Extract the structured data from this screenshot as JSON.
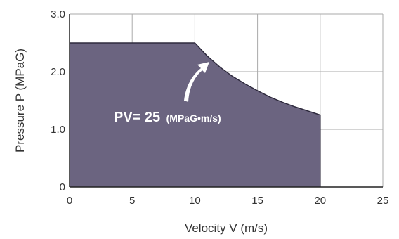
{
  "chart_data": {
    "type": "area",
    "xlabel": "Velocity V (m/s)",
    "ylabel": "Pressure P   (MPaG)",
    "xlim": [
      0,
      25
    ],
    "ylim": [
      0,
      3.0
    ],
    "x_ticks": [
      "0",
      "5",
      "10",
      "15",
      "20",
      "25"
    ],
    "y_ticks": [
      "0",
      "1.0",
      "2.0",
      "3.0"
    ],
    "grid": true,
    "series": [
      {
        "x": [
          0,
          10,
          11,
          12,
          13,
          14,
          15,
          16,
          17,
          18,
          19,
          20
        ],
        "y": [
          2.5,
          2.5,
          2.27,
          2.08,
          1.92,
          1.79,
          1.67,
          1.56,
          1.47,
          1.39,
          1.32,
          1.25
        ],
        "fill_color": "#6b6480",
        "line_color": "#2e2a3d"
      }
    ],
    "annotation": {
      "text_main": "PV= 25",
      "text_unit": "(MPaG•m/s)",
      "arrow_color": "#ffffff"
    }
  }
}
